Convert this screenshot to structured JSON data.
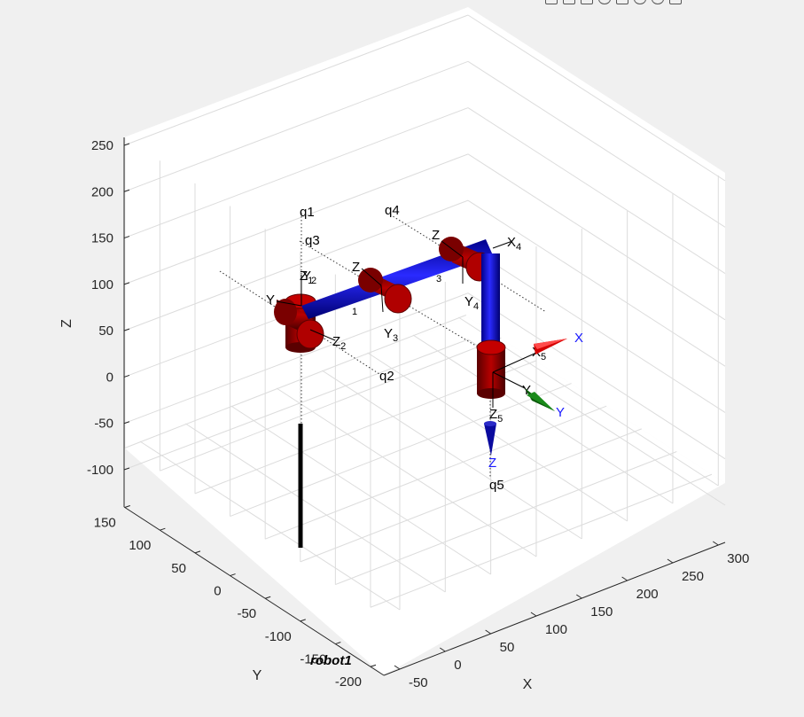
{
  "chart_data": {
    "type": "3d-robot-plot",
    "robot_name": "robot1",
    "axes": {
      "x": {
        "label": "X",
        "ticks": [
          "-50",
          "0",
          "50",
          "100",
          "150",
          "200",
          "250",
          "300"
        ]
      },
      "y": {
        "label": "Y",
        "ticks": [
          "150",
          "100",
          "50",
          "0",
          "-50",
          "-100",
          "-150",
          "-200"
        ]
      },
      "z": {
        "label": "Z",
        "ticks": [
          "250",
          "200",
          "150",
          "100",
          "50",
          "0",
          "-50",
          "-100"
        ]
      }
    },
    "joints": [
      "q1",
      "q2",
      "q3",
      "q4",
      "q5"
    ],
    "triad": {
      "x": "X",
      "y": "Y",
      "z": "Z"
    }
  },
  "colors": {
    "link": "#0a0adc",
    "joint": "#8b0000",
    "base": "#000000",
    "triad_x": "#d40000",
    "triad_y": "#0a6a0a",
    "triad_z": "#0a0a9e"
  },
  "toolbar": {
    "icons": [
      "save-icon",
      "print-icon",
      "datacursor-icon",
      "rotate-icon",
      "pan-icon",
      "zoom-in-icon",
      "zoom-out-icon",
      "home-icon"
    ]
  }
}
